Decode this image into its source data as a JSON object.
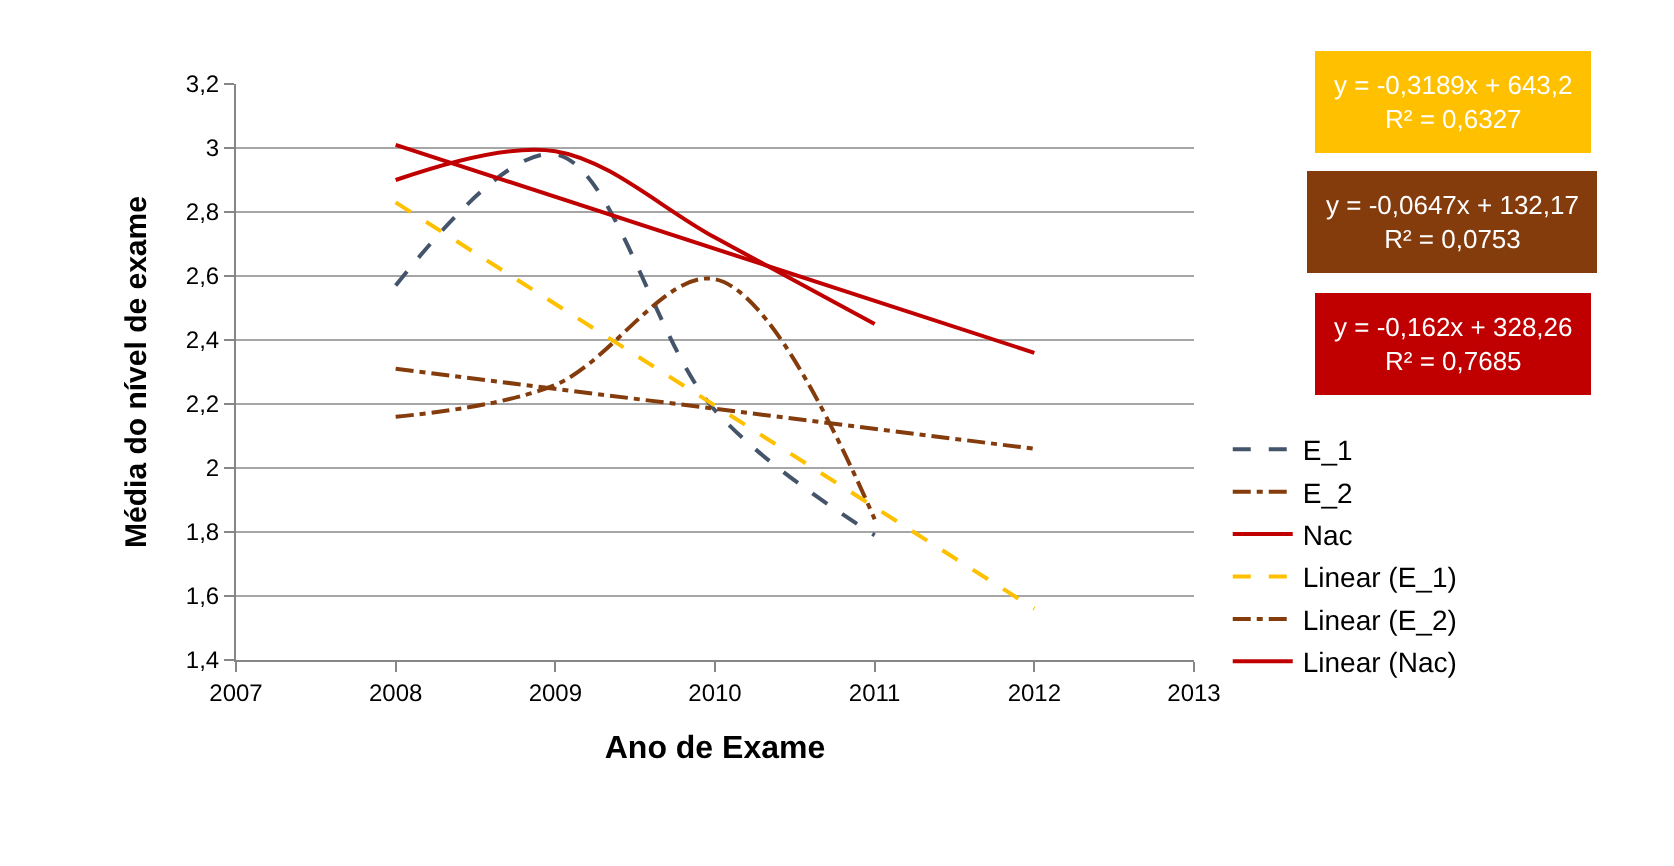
{
  "chart_data": {
    "type": "line",
    "xlabel": "Ano de Exame",
    "ylabel": "Média do nível de exame",
    "xlim": [
      2007,
      2013
    ],
    "xticks": [
      2007,
      2008,
      2009,
      2010,
      2011,
      2012,
      2013
    ],
    "ylim": [
      1.4,
      3.2
    ],
    "yticks": [
      {
        "value": 1.4,
        "label": "1,4"
      },
      {
        "value": 1.6,
        "label": "1,6"
      },
      {
        "value": 1.8,
        "label": "1,8"
      },
      {
        "value": 2,
        "label": "2"
      },
      {
        "value": 2.2,
        "label": "2,2"
      },
      {
        "value": 2.4,
        "label": "2,4"
      },
      {
        "value": 2.6,
        "label": "2,6"
      },
      {
        "value": 2.8,
        "label": "2,8"
      },
      {
        "value": 3,
        "label": "3"
      },
      {
        "value": 3.2,
        "label": "3,2"
      }
    ],
    "grid": "y",
    "legend": "right",
    "marker": "none",
    "series": [
      {
        "name": "E_1",
        "color": "#44546a",
        "line_style": "dashed",
        "x": [
          2008,
          2009,
          2010,
          2011
        ],
        "values": [
          2.57,
          2.98,
          2.18,
          1.79
        ]
      },
      {
        "name": "E_2",
        "color": "#843c0c",
        "line_style": "dashdot",
        "x": [
          2008,
          2009,
          2010,
          2011
        ],
        "values": [
          2.16,
          2.26,
          2.59,
          1.84
        ]
      },
      {
        "name": "Nac",
        "color": "#c00000",
        "line_style": "solid",
        "x": [
          2008,
          2009,
          2010,
          2011
        ],
        "values": [
          2.9,
          2.99,
          2.72,
          2.45
        ]
      },
      {
        "name": "Linear (E_1)",
        "color": "#ffc000",
        "line_style": "dashed",
        "x": [
          2008,
          2012
        ],
        "values": [
          2.83,
          1.56
        ]
      },
      {
        "name": "Linear (E_2)",
        "color": "#843c0c",
        "line_style": "dashdot",
        "x": [
          2008,
          2012
        ],
        "values": [
          2.31,
          2.06
        ]
      },
      {
        "name": "Linear (Nac)",
        "color": "#c00000",
        "line_style": "solid",
        "x": [
          2008,
          2012
        ],
        "values": [
          3.01,
          2.36
        ]
      }
    ],
    "annotations": [
      "y = -0,3189x + 643,2\nR² = 0,6327",
      "y = -0,0647x + 132,17\nR² = 0,0753",
      "y = -0,162x + 328,26\nR² = 0,7685"
    ]
  }
}
